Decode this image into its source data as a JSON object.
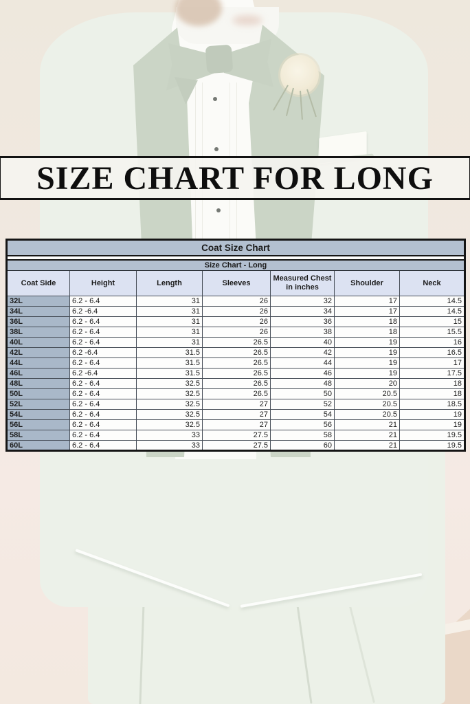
{
  "banner": {
    "title": "SIZE CHART FOR LONG"
  },
  "table": {
    "title": "Coat Size Chart",
    "subtitle": "Size Chart - Long",
    "columns": [
      "Coat Side",
      "Height",
      "Length",
      "Sleeves",
      "Measured Chest in inches",
      "Shoulder",
      "Neck"
    ],
    "rows": [
      [
        "32L",
        "6.2 - 6.4",
        "31",
        "26",
        "32",
        "17",
        "14.5"
      ],
      [
        "34L",
        "6.2 -6.4",
        "31",
        "26",
        "34",
        "17",
        "14.5"
      ],
      [
        "36L",
        "6.2 - 6.4",
        "31",
        "26",
        "36",
        "18",
        "15"
      ],
      [
        "38L",
        "6.2 - 6.4",
        "31",
        "26",
        "38",
        "18",
        "15.5"
      ],
      [
        "40L",
        "6.2 - 6.4",
        "31",
        "26.5",
        "40",
        "19",
        "16"
      ],
      [
        "42L",
        "6.2 -6.4",
        "31.5",
        "26.5",
        "42",
        "19",
        "16.5"
      ],
      [
        "44L",
        "6.2 - 6.4",
        "31.5",
        "26.5",
        "44",
        "19",
        "17"
      ],
      [
        "46L",
        "6.2 -6.4",
        "31.5",
        "26.5",
        "46",
        "19",
        "17.5"
      ],
      [
        "48L",
        "6.2 - 6.4",
        "32.5",
        "26.5",
        "48",
        "20",
        "18"
      ],
      [
        "50L",
        "6.2 - 6.4",
        "32.5",
        "26.5",
        "50",
        "20.5",
        "18"
      ],
      [
        "52L",
        "6.2 - 6.4",
        "32.5",
        "27",
        "52",
        "20.5",
        "18.5"
      ],
      [
        "54L",
        "6.2 - 6.4",
        "32.5",
        "27",
        "54",
        "20.5",
        "19"
      ],
      [
        "56L",
        "6.2 - 6.4",
        "32.5",
        "27",
        "56",
        "21",
        "19"
      ],
      [
        "58L",
        "6.2 - 6.4",
        "33",
        "27.5",
        "58",
        "21",
        "19.5"
      ],
      [
        "60L",
        "6.2 - 6.4",
        "33",
        "27.5",
        "60",
        "21",
        "19.5"
      ]
    ]
  },
  "colors": {
    "table_title_bg": "#b3c0d0",
    "column_header_bg": "#dce2f2",
    "row_label_bg": "#a9b8c9",
    "table_border": "#151515",
    "banner_bg": "#f5f4f0",
    "banner_text": "#0e0e0e",
    "suit": "#e8eee4",
    "lapel": "#c0ccba",
    "backdrop": "#ebe3d6",
    "floor": "#e6d0bc"
  }
}
